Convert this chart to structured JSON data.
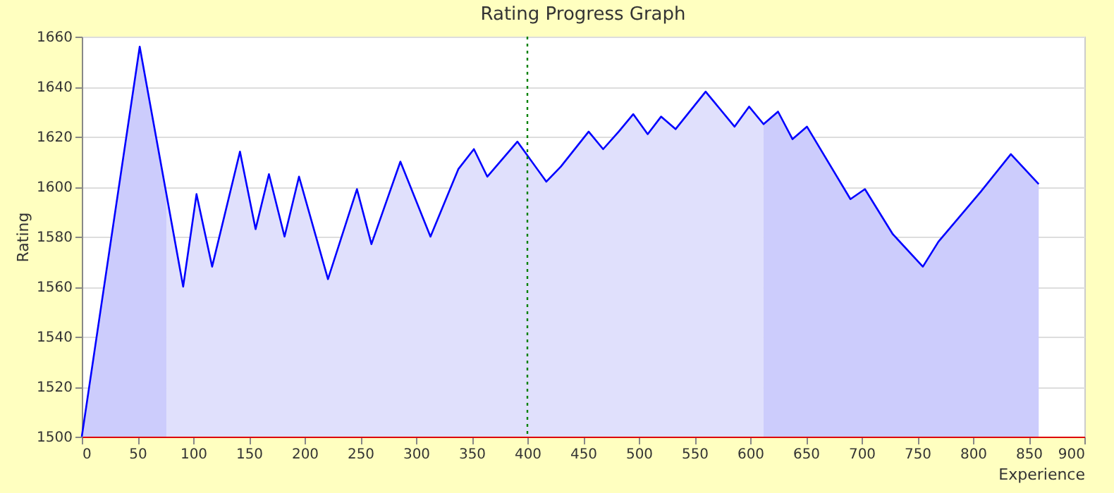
{
  "chart_data": {
    "type": "line",
    "title": "Rating Progress Graph",
    "xlabel": "Experience",
    "ylabel": "Rating",
    "xlim": [
      0,
      900
    ],
    "xticks": [
      0,
      50,
      100,
      150,
      200,
      250,
      300,
      350,
      400,
      450,
      500,
      550,
      600,
      650,
      700,
      750,
      800,
      850,
      900
    ],
    "ylim": [
      1500,
      1660
    ],
    "yticks": [
      1500,
      1520,
      1540,
      1560,
      1580,
      1600,
      1620,
      1640,
      1660
    ],
    "grid": "y",
    "marker": "none",
    "line_style": "solid",
    "ref_lines": [
      {
        "axis": "x",
        "value": 400,
        "color": "#008000",
        "line_style": "dotted"
      }
    ],
    "series": [
      {
        "type": "area",
        "color": "#ccccfc",
        "x": [
          0,
          52,
          76
        ],
        "values": [
          1500,
          1656,
          1596
        ]
      },
      {
        "type": "area",
        "color": "#e0e0fc",
        "x": [
          76,
          91,
          103,
          117,
          142,
          156,
          168,
          182,
          195,
          221,
          247,
          260,
          286,
          313,
          338,
          352,
          364,
          391,
          417,
          430,
          455,
          468,
          482,
          495,
          508,
          520,
          533,
          560,
          586,
          599,
          612
        ],
        "values": [
          1596,
          1560,
          1597,
          1568,
          1614,
          1583,
          1605,
          1580,
          1604,
          1563,
          1599,
          1577,
          1610,
          1580,
          1607,
          1615,
          1604,
          1618,
          1602,
          1608,
          1622,
          1615,
          1622,
          1629,
          1621,
          1628,
          1623,
          1638,
          1624,
          1632,
          1625
        ]
      },
      {
        "type": "area",
        "color": "#ccccfc",
        "x": [
          612,
          625,
          638,
          651,
          690,
          703,
          728,
          755,
          769,
          807,
          834,
          859
        ],
        "values": [
          1625,
          1630,
          1619,
          1624,
          1595,
          1599,
          1581,
          1568,
          1578,
          1598,
          1613,
          1601
        ]
      },
      {
        "color": "#0000ff",
        "x": [
          0,
          52,
          91,
          103,
          117,
          142,
          156,
          168,
          182,
          195,
          221,
          247,
          260,
          286,
          313,
          338,
          352,
          364,
          391,
          417,
          430,
          455,
          468,
          482,
          495,
          508,
          520,
          533,
          560,
          586,
          599,
          612,
          625,
          638,
          651,
          690,
          703,
          728,
          755,
          769,
          807,
          834,
          859
        ],
        "values": [
          1500,
          1656,
          1560,
          1597,
          1568,
          1614,
          1583,
          1605,
          1580,
          1604,
          1563,
          1599,
          1577,
          1610,
          1580,
          1607,
          1615,
          1604,
          1618,
          1602,
          1608,
          1622,
          1615,
          1622,
          1629,
          1621,
          1628,
          1623,
          1638,
          1624,
          1632,
          1625,
          1630,
          1619,
          1624,
          1595,
          1599,
          1581,
          1568,
          1578,
          1598,
          1613,
          1601
        ]
      }
    ]
  }
}
